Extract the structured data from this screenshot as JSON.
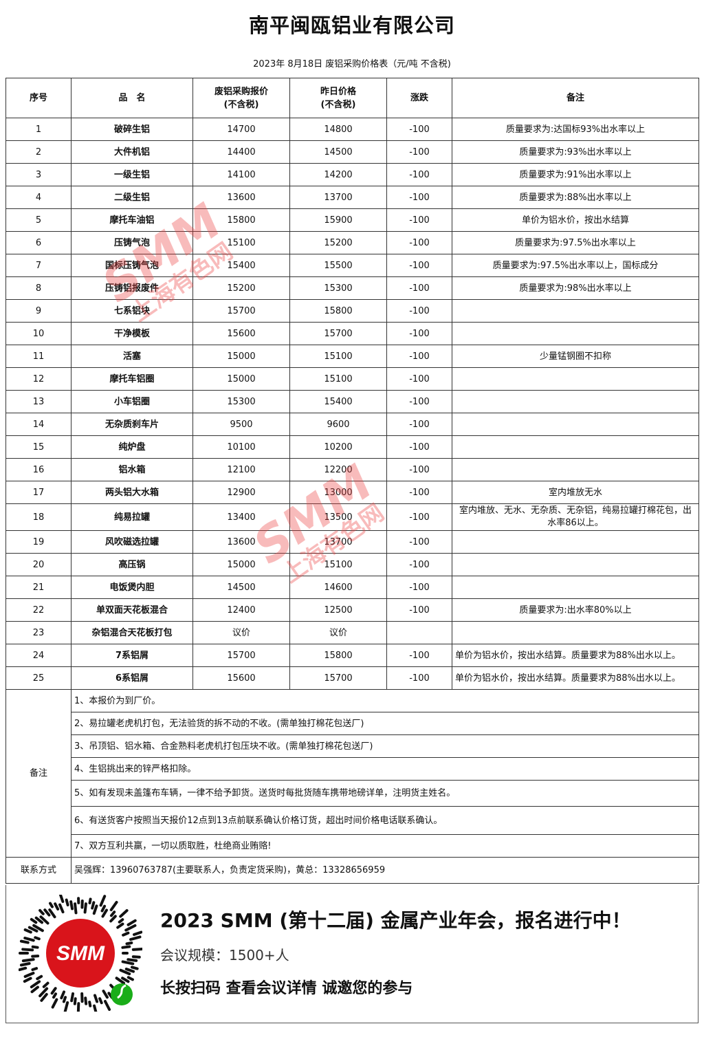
{
  "header": {
    "title": "南平闽瓯铝业有限公司",
    "subtitle": "2023年 8月18日 废铝采购价格表（元/吨  不含税)"
  },
  "table": {
    "columns": [
      "序号",
      "品　名",
      "废铝采购报价\n(不含税)",
      "昨日价格\n(不含税)",
      "涨跌",
      "备注"
    ],
    "rows": [
      [
        "1",
        "破碎生铝",
        "14700",
        "14800",
        "-100",
        "质量要求为:达国标93%出水率以上"
      ],
      [
        "2",
        "大件机铝",
        "14400",
        "14500",
        "-100",
        "质量要求为:93%出水率以上"
      ],
      [
        "3",
        "一级生铝",
        "14100",
        "14200",
        "-100",
        "质量要求为:91%出水率以上"
      ],
      [
        "4",
        "二级生铝",
        "13600",
        "13700",
        "-100",
        "质量要求为:88%出水率以上"
      ],
      [
        "5",
        "摩托车油铝",
        "15800",
        "15900",
        "-100",
        "单价为铝水价，按出水结算"
      ],
      [
        "6",
        "压铸气泡",
        "15100",
        "15200",
        "-100",
        "质量要求为:97.5%出水率以上"
      ],
      [
        "7",
        "国标压铸气泡",
        "15400",
        "15500",
        "-100",
        "质量要求为:97.5%出水率以上，国标成分"
      ],
      [
        "8",
        "压铸铝报废件",
        "15200",
        "15300",
        "-100",
        "质量要求为:98%出水率以上"
      ],
      [
        "9",
        "七系铝块",
        "15700",
        "15800",
        "-100",
        ""
      ],
      [
        "10",
        "干净模板",
        "15600",
        "15700",
        "-100",
        ""
      ],
      [
        "11",
        "活塞",
        "15000",
        "15100",
        "-100",
        "少量锰钢圈不扣称"
      ],
      [
        "12",
        "摩托车铝圈",
        "15000",
        "15100",
        "-100",
        ""
      ],
      [
        "13",
        "小车铝圈",
        "15300",
        "15400",
        "-100",
        ""
      ],
      [
        "14",
        "无杂质刹车片",
        "9500",
        "9600",
        "-100",
        ""
      ],
      [
        "15",
        "纯炉盘",
        "10100",
        "10200",
        "-100",
        ""
      ],
      [
        "16",
        "铝水箱",
        "12100",
        "12200",
        "-100",
        ""
      ],
      [
        "17",
        "两头铝大水箱",
        "12900",
        "13000",
        "-100",
        "室内堆放无水"
      ],
      [
        "18",
        "纯易拉罐",
        "13400",
        "13500",
        "-100",
        "室内堆放、无水、无杂质、无杂铝，纯易拉罐打棉花包，出水率86以上。"
      ],
      [
        "19",
        "风吹磁选拉罐",
        "13600",
        "13700",
        "-100",
        ""
      ],
      [
        "20",
        "高压锅",
        "15000",
        "15100",
        "-100",
        ""
      ],
      [
        "21",
        "电饭煲内胆",
        "14500",
        "14600",
        "-100",
        ""
      ],
      [
        "22",
        "单双面天花板混合",
        "12400",
        "12500",
        "-100",
        "质量要求为:出水率80%以上"
      ],
      [
        "23",
        "杂铝混合天花板打包",
        "议价",
        "议价",
        "",
        ""
      ],
      [
        "24",
        "7系铝屑",
        "15700",
        "15800",
        "-100",
        "单价为铝水价，按出水结算。质量要求为88%出水以上。"
      ],
      [
        "25",
        "6系铝屑",
        "15600",
        "15700",
        "-100",
        "单价为铝水价，按出水结算。质量要求为88%出水以上。"
      ]
    ]
  },
  "notes": {
    "label": "备注",
    "items": [
      "1、本报价为到厂价。",
      "2、易拉罐老虎机打包，无法验货的拆不动的不收。(需单独打棉花包送厂)",
      "3、吊顶铝、铝水箱、合金熟料老虎机打包压块不收。(需单独打棉花包送厂)",
      "4、生铝挑出来的锌严格扣除。",
      "5、如有发现未盖篷布车辆，一律不给予卸货。送货时每批货随车携带地磅详单，注明货主姓名。",
      "6、有送货客户按照当天报价12点到13点前联系确认价格订货，超出时间价格电话联系确认。",
      "7、双方互利共赢，一切以质取胜，杜绝商业贿赂!"
    ]
  },
  "contact": {
    "label": "联系方式",
    "value": "吴强辉：13960763787(主要联系人，负责定货采购)，黄总：13328656959"
  },
  "banner": {
    "headline": "2023 SMM (第十二届) 金属产业年会，报名进行中！",
    "scale": "会议规模：1500+人",
    "cta": "长按扫码  查看会议详情   诚邀您的参与",
    "qr_logo": "SMM",
    "qr_icon": "mini-program-icon"
  },
  "watermark": {
    "brand": "SMM",
    "name": "上海有色网",
    "color": "#eb3c3c"
  }
}
